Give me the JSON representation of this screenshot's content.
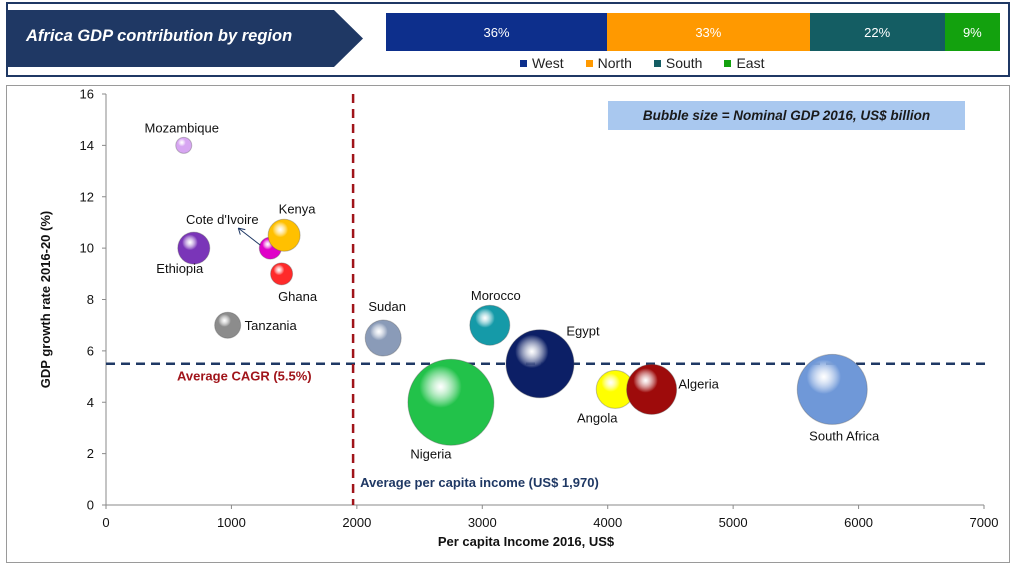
{
  "header": {
    "title": "Africa GDP contribution by region",
    "shares": [
      {
        "region": "West",
        "value": 36,
        "label": "36%",
        "color": "#0d2f8c"
      },
      {
        "region": "North",
        "value": 33,
        "label": "33%",
        "color": "#ff9900"
      },
      {
        "region": "South",
        "value": 22,
        "label": "22%",
        "color": "#145d63"
      },
      {
        "region": "East",
        "value": 9,
        "label": "9%",
        "color": "#13a10e"
      }
    ]
  },
  "badge": {
    "text": "Bubble size = Nominal GDP 2016, US$ billion"
  },
  "chart_data": {
    "type": "scatter",
    "xlabel": "Per capita Income 2016, US$",
    "ylabel": "GDP growth rate 2016-20 (%)",
    "xlim": [
      0,
      7000
    ],
    "ylim": [
      0,
      16
    ],
    "xticks": [
      0,
      1000,
      2000,
      3000,
      4000,
      5000,
      6000,
      7000
    ],
    "yticks": [
      0,
      2,
      4,
      6,
      8,
      10,
      12,
      14,
      16
    ],
    "grid": false,
    "reference_lines": [
      {
        "axis": "x",
        "value": 1970,
        "label": "Average per capita income (US$ 1,970)",
        "color": "#1f3864"
      },
      {
        "axis": "y",
        "value": 5.5,
        "label": "Average CAGR (5.5%)",
        "color": "#a0141a"
      }
    ],
    "points": [
      {
        "name": "Mozambique",
        "x": 620,
        "y": 14.0,
        "size": 8,
        "color": "#d7a6f2"
      },
      {
        "name": "Ethiopia",
        "x": 700,
        "y": 10.0,
        "size": 16,
        "color": "#7a35b8"
      },
      {
        "name": "Cote d'Ivoire",
        "x": 1310,
        "y": 10.0,
        "size": 11,
        "color": "#e000c8"
      },
      {
        "name": "Kenya",
        "x": 1420,
        "y": 10.5,
        "size": 16,
        "color": "#ffc000"
      },
      {
        "name": "Ghana",
        "x": 1400,
        "y": 9.0,
        "size": 11,
        "color": "#ff2a2a"
      },
      {
        "name": "Tanzania",
        "x": 970,
        "y": 7.0,
        "size": 13,
        "color": "#8c8c8c"
      },
      {
        "name": "Sudan",
        "x": 2210,
        "y": 6.5,
        "size": 18,
        "color": "#8a9bb8"
      },
      {
        "name": "Morocco",
        "x": 3060,
        "y": 7.0,
        "size": 20,
        "color": "#159aa8"
      },
      {
        "name": "Egypt",
        "x": 3460,
        "y": 5.5,
        "size": 34,
        "color": "#0c1f66"
      },
      {
        "name": "Nigeria",
        "x": 2750,
        "y": 4.0,
        "size": 43,
        "color": "#22c24a"
      },
      {
        "name": "Angola",
        "x": 4060,
        "y": 4.5,
        "size": 19,
        "color": "#ffff00"
      },
      {
        "name": "Algeria",
        "x": 4350,
        "y": 4.5,
        "size": 25,
        "color": "#9e0b0b"
      },
      {
        "name": "South Africa",
        "x": 5790,
        "y": 4.5,
        "size": 35,
        "color": "#6f98d8"
      }
    ]
  }
}
